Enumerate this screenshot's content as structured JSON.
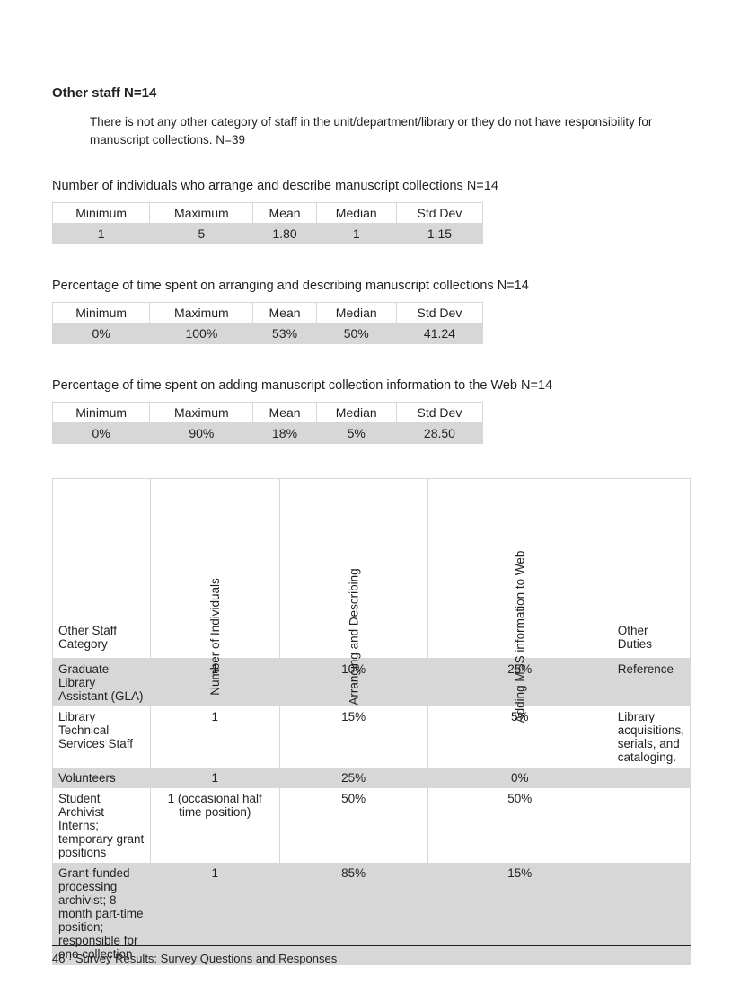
{
  "section_heading": "Other staff N=14",
  "note": "There is not any other category of staff in the unit/department/library or they do not have responsibility for manuscript collections. N=39",
  "stat_blocks": [
    {
      "caption": "Number of individuals who arrange and describe manuscript collections N=14",
      "columns": [
        "Minimum",
        "Maximum",
        "Mean",
        "Median",
        "Std Dev"
      ],
      "row": [
        "1",
        "5",
        "1.80",
        "1",
        "1.15"
      ]
    },
    {
      "caption": "Percentage of time spent on arranging and describing manuscript collections N=14",
      "columns": [
        "Minimum",
        "Maximum",
        "Mean",
        "Median",
        "Std Dev"
      ],
      "row": [
        "0%",
        "100%",
        "53%",
        "50%",
        "41.24"
      ]
    },
    {
      "caption": "Percentage of time spent on adding manuscript collection information to the Web N=14",
      "columns": [
        "Minimum",
        "Maximum",
        "Mean",
        "Median",
        "Std Dev"
      ],
      "row": [
        "0%",
        "90%",
        "18%",
        "5%",
        "28.50"
      ]
    }
  ],
  "main_table": {
    "columns": [
      "Other Staff Category",
      "Number of Individuals",
      "Arranging and Describing",
      "Adding MSS information to Web",
      "Other Duties"
    ],
    "rows": [
      {
        "category": "Graduate Library Assistant (GLA)",
        "num": "1",
        "arr": "10%",
        "add": "25%",
        "other": "Reference"
      },
      {
        "category": "Library Technical Services Staff",
        "num": "1",
        "arr": "15%",
        "add": "5%",
        "other": "Library acquisitions, serials, and cataloging."
      },
      {
        "category": "Volunteers",
        "num": "1",
        "arr": "25%",
        "add": "0%",
        "other": ""
      },
      {
        "category": "Student Archivist Interns; temporary grant positions",
        "num": "1 (occasional half time position)",
        "arr": "50%",
        "add": "50%",
        "other": ""
      },
      {
        "category": "Grant-funded processing archivist; 8 month part-time position; responsible for one collection",
        "num": "1",
        "arr": "85%",
        "add": "15%",
        "other": ""
      }
    ]
  },
  "footer": "46 · Survey Results: Survey Questions and Responses"
}
